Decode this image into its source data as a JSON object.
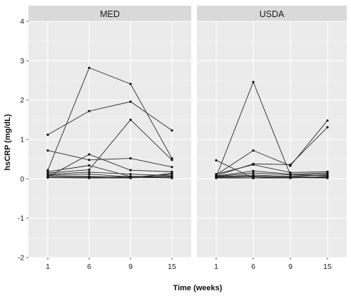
{
  "chart_data": {
    "type": "line",
    "xlabel": "Time (weeks)",
    "ylabel": "hsCRP (mg/dL)",
    "x": [
      1,
      6,
      9,
      15
    ],
    "x_tick_labels": [
      "1",
      "6",
      "9",
      "15"
    ],
    "ylim": [
      -2,
      4
    ],
    "y_tick_labels": [
      "-2",
      "-1",
      "0",
      "1",
      "2",
      "3",
      "4"
    ],
    "grid": true,
    "panels": [
      {
        "title": "MED",
        "series": [
          {
            "values": [
              1.12,
              1.72,
              1.96,
              1.23
            ]
          },
          {
            "values": [
              0.22,
              2.82,
              2.41,
              0.52
            ]
          },
          {
            "values": [
              0.72,
              0.48,
              0.52,
              0.3
            ]
          },
          {
            "values": [
              0.05,
              0.62,
              0.22,
              0.18
            ]
          },
          {
            "values": [
              0.15,
              0.23,
              1.5,
              0.48
            ]
          },
          {
            "values": [
              0.18,
              0.34,
              0.06,
              0.06
            ]
          },
          {
            "values": [
              0.12,
              0.17,
              0.12,
              0.08
            ]
          },
          {
            "values": [
              0.1,
              0.12,
              0.05,
              0.05
            ]
          },
          {
            "values": [
              0.08,
              0.06,
              0.04,
              0.12
            ]
          },
          {
            "values": [
              0.07,
              0.05,
              0.03,
              0.03
            ]
          },
          {
            "values": [
              0.04,
              0.03,
              0.06,
              0.02
            ]
          },
          {
            "values": [
              0.03,
              0.02,
              0.02,
              0.14
            ]
          }
        ]
      },
      {
        "title": "USDA",
        "series": [
          {
            "values": [
              0.47,
              0.02,
              0.05,
              0.04
            ]
          },
          {
            "values": [
              0.05,
              2.46,
              0.1,
              0.12
            ]
          },
          {
            "values": [
              0.1,
              0.72,
              0.33,
              1.48
            ]
          },
          {
            "values": [
              0.08,
              0.38,
              0.36,
              1.31
            ]
          },
          {
            "values": [
              0.12,
              0.36,
              0.16,
              0.18
            ]
          },
          {
            "values": [
              0.07,
              0.2,
              0.12,
              0.15
            ]
          },
          {
            "values": [
              0.06,
              0.15,
              0.1,
              0.08
            ]
          },
          {
            "values": [
              0.05,
              0.1,
              0.06,
              0.1
            ]
          },
          {
            "values": [
              0.04,
              0.07,
              0.04,
              0.03
            ]
          },
          {
            "values": [
              0.03,
              0.05,
              0.03,
              0.02
            ]
          },
          {
            "values": [
              0.02,
              0.02,
              0.02,
              0.06
            ]
          }
        ]
      }
    ]
  }
}
